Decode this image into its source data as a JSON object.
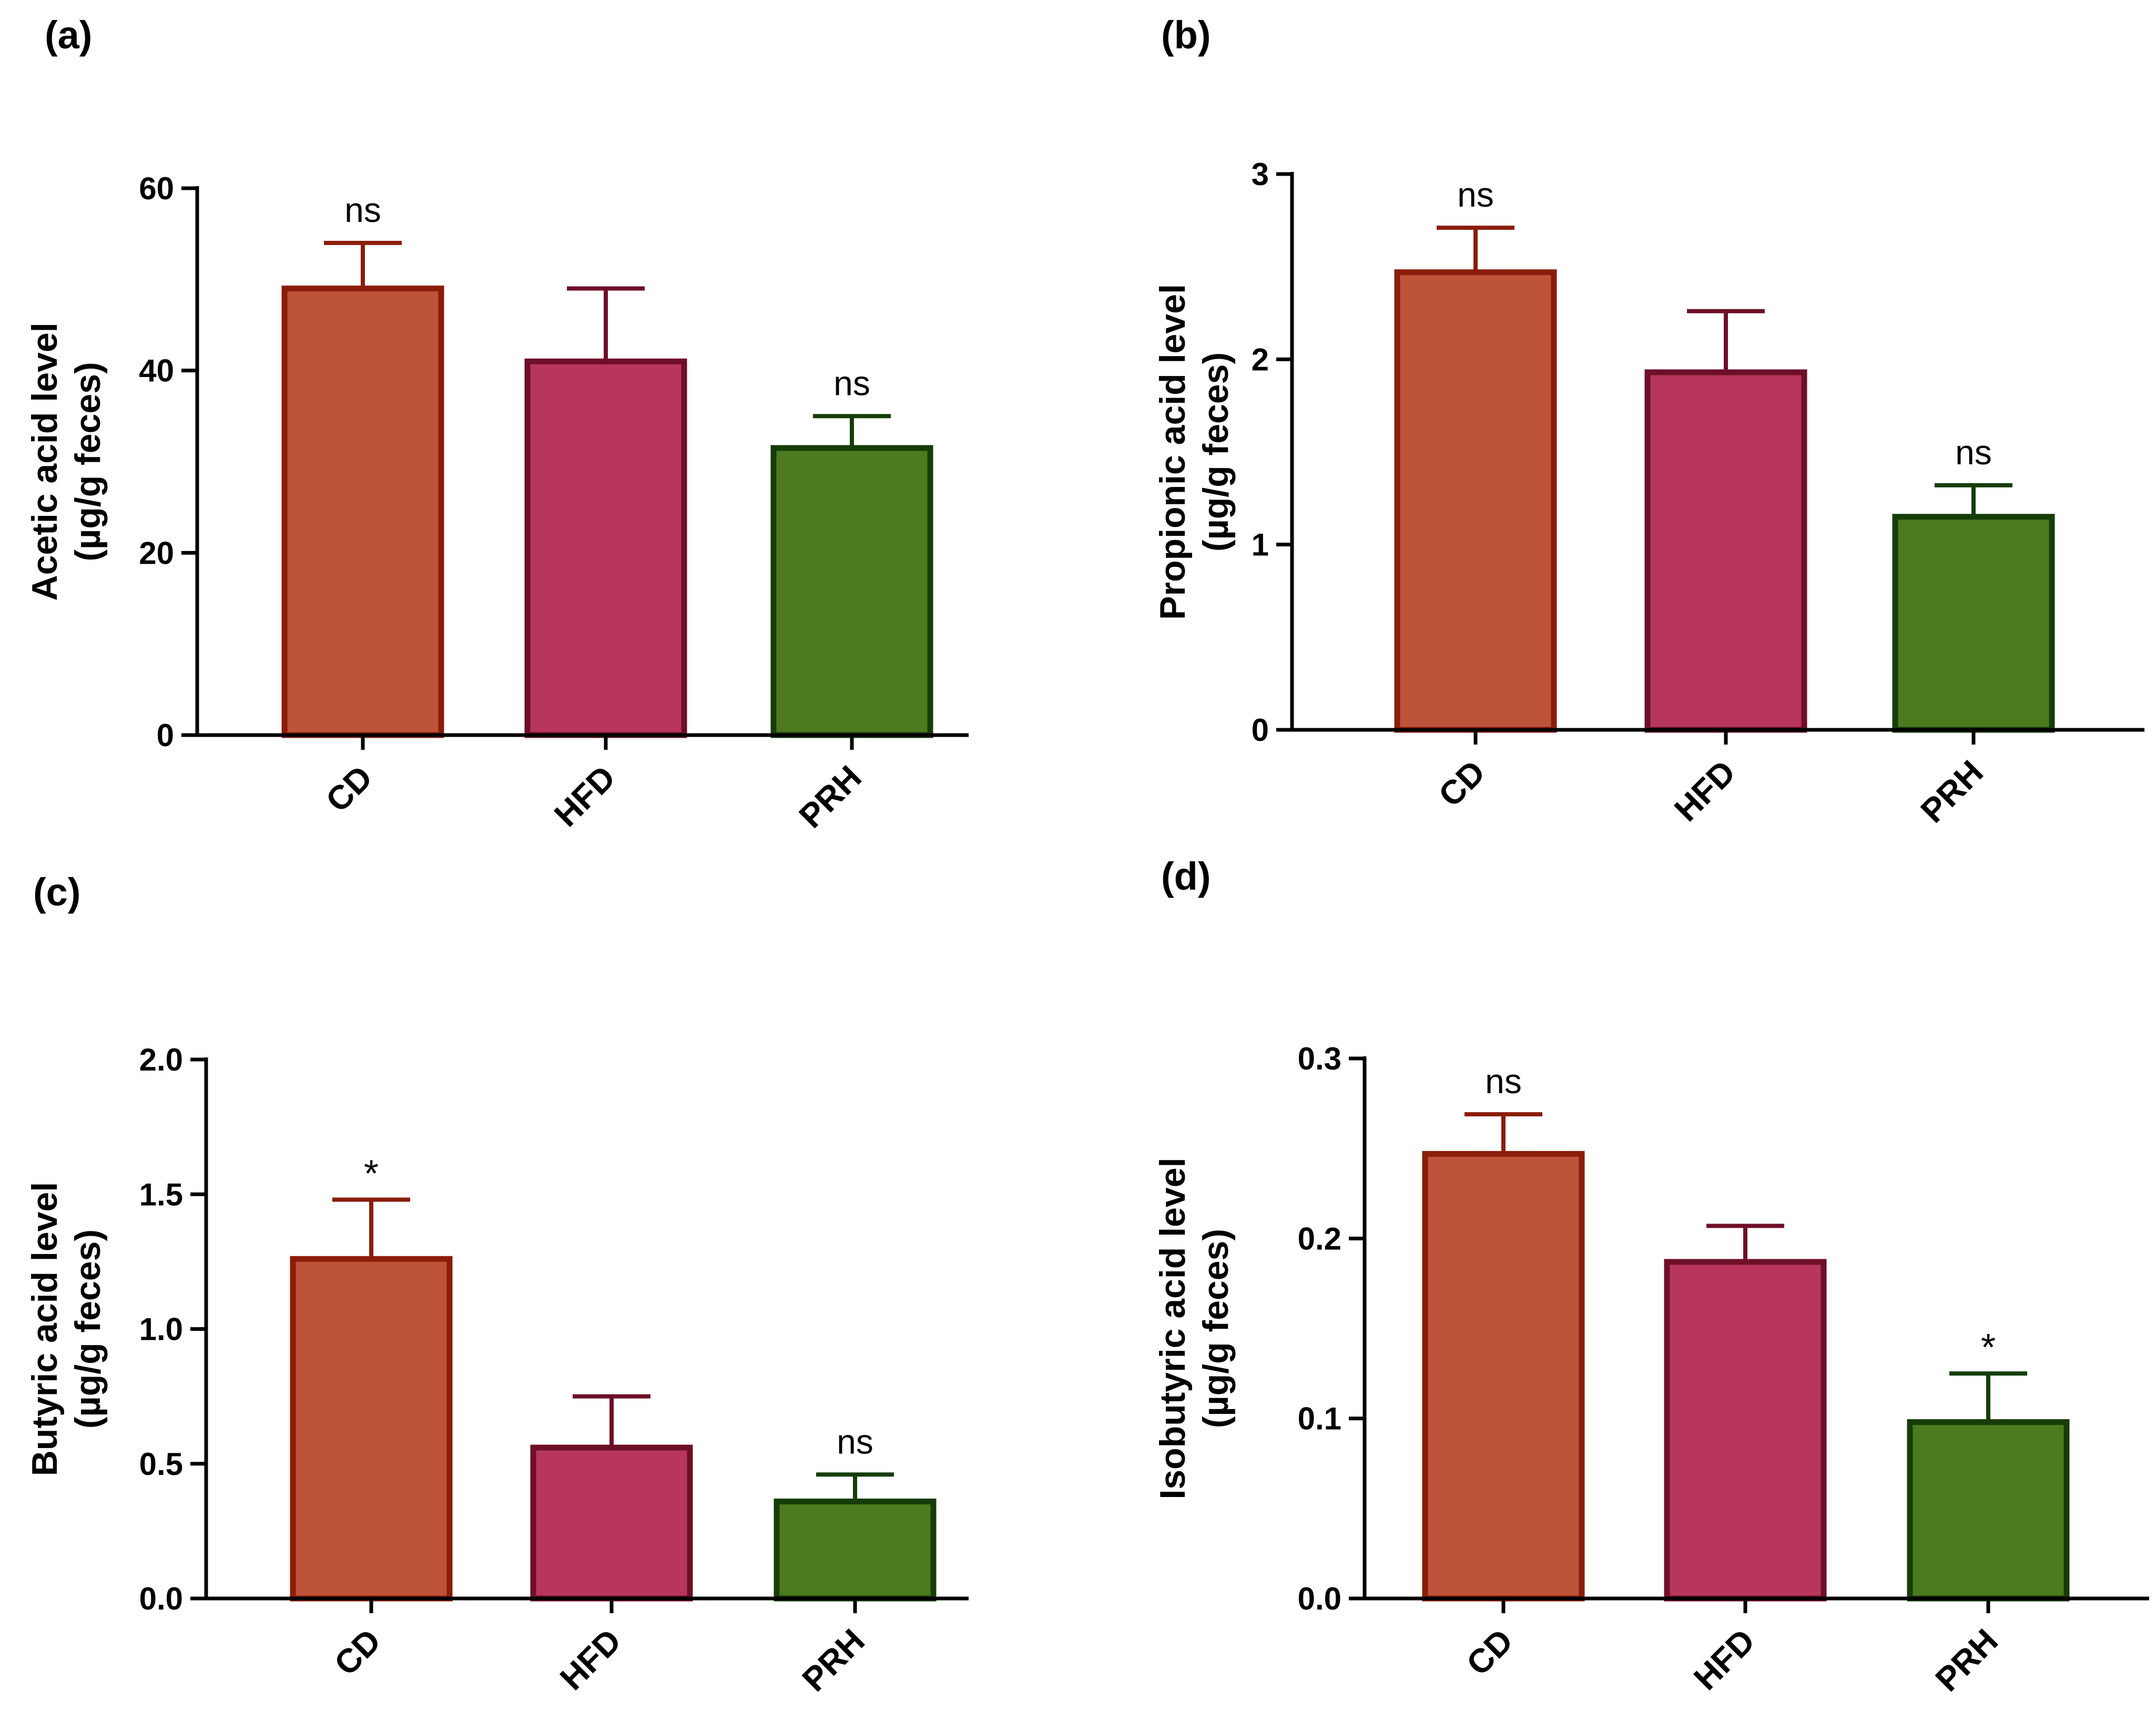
{
  "colors": {
    "CD": {
      "fill": "#bd5439",
      "stroke": "#8a1d0a"
    },
    "HFD": {
      "fill": "#b8365d",
      "stroke": "#6e0f28"
    },
    "PRH": {
      "fill": "#4d7a1f",
      "stroke": "#163d08"
    }
  },
  "chart_data": [
    {
      "panel": "(a)",
      "type": "bar",
      "categories": [
        "CD",
        "HFD",
        "PRH"
      ],
      "values": [
        49,
        41,
        31.5
      ],
      "errors": [
        5,
        8,
        3.5
      ],
      "significance": [
        "ns",
        "",
        "ns"
      ],
      "ylabel_line1": "Acetic acid level",
      "ylabel_line2": "(µg/g feces)",
      "ylim": [
        0,
        60
      ],
      "yticks": [
        0,
        20,
        40,
        60
      ],
      "ytick_labels": [
        "0",
        "20",
        "40",
        "60"
      ]
    },
    {
      "panel": "(b)",
      "type": "bar",
      "categories": [
        "CD",
        "HFD",
        "PRH"
      ],
      "values": [
        2.47,
        1.93,
        1.15
      ],
      "errors": [
        0.24,
        0.33,
        0.17
      ],
      "significance": [
        "ns",
        "",
        "ns"
      ],
      "ylabel_line1": "Propionic acid level",
      "ylabel_line2": "(µg/g feces)",
      "ylim": [
        0,
        3
      ],
      "yticks": [
        0,
        1,
        2,
        3
      ],
      "ytick_labels": [
        "0",
        "1",
        "2",
        "3"
      ]
    },
    {
      "panel": "(c)",
      "type": "bar",
      "categories": [
        "CD",
        "HFD",
        "PRH"
      ],
      "values": [
        1.26,
        0.56,
        0.36
      ],
      "errors": [
        0.22,
        0.19,
        0.1
      ],
      "significance": [
        "*",
        "",
        "ns"
      ],
      "ylabel_line1": "Butyric acid level",
      "ylabel_line2": "(µg/g feces)",
      "ylim": [
        0,
        2.0
      ],
      "yticks": [
        0,
        0.5,
        1.0,
        1.5,
        2.0
      ],
      "ytick_labels": [
        "0.0",
        "0.5",
        "1.0",
        "1.5",
        "2.0"
      ]
    },
    {
      "panel": "(d)",
      "type": "bar",
      "categories": [
        "CD",
        "HFD",
        "PRH"
      ],
      "values": [
        0.247,
        0.187,
        0.098
      ],
      "errors": [
        0.022,
        0.02,
        0.027
      ],
      "significance": [
        "ns",
        "",
        "*"
      ],
      "ylabel_line1": "Isobutyric acid level",
      "ylabel_line2": "(µg/g feces)",
      "ylim": [
        0,
        0.3
      ],
      "yticks": [
        0,
        0.1,
        0.2,
        0.3
      ],
      "ytick_labels": [
        "0.0",
        "0.1",
        "0.2",
        "0.3"
      ]
    }
  ]
}
